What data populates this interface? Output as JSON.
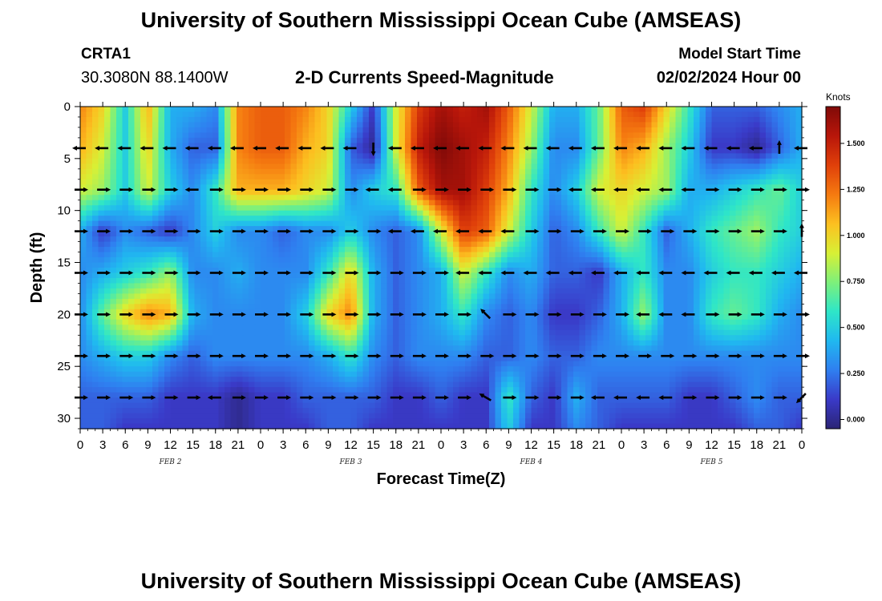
{
  "header": {
    "title": "University of Southern Mississippi Ocean Cube (AMSEAS)",
    "station_id": "CRTA1",
    "coordinates": "30.3080N  88.1400W",
    "chart_title": "2-D Currents Speed-Magnitude",
    "model_start_label": "Model Start Time",
    "model_start_value": "02/02/2024 Hour 00"
  },
  "footer": {
    "title": "University of Southern Mississippi Ocean Cube (AMSEAS)"
  },
  "colors": {
    "palette": [
      "#2b2475",
      "#3a3ac8",
      "#2f7ff0",
      "#20b8f0",
      "#2ee6c8",
      "#7ef07a",
      "#d8f035",
      "#fcc020",
      "#f57a10",
      "#e0400a",
      "#b8160a",
      "#800a08"
    ]
  },
  "chart_data": {
    "type": "heatmap",
    "title": "2-D Currents Speed-Magnitude",
    "xlabel": "Forecast Time(Z)",
    "ylabel": "Depth (ft)",
    "x_tick_labels": [
      "0",
      "3",
      "6",
      "9",
      "12",
      "15",
      "18",
      "21",
      "0",
      "3",
      "6",
      "9",
      "12",
      "15",
      "18",
      "21",
      "0",
      "3",
      "6",
      "9",
      "12",
      "15",
      "18",
      "21",
      "0",
      "3",
      "6",
      "9",
      "12",
      "15",
      "18",
      "21",
      "0"
    ],
    "x_range_hours": [
      0,
      96
    ],
    "date_labels": [
      {
        "label": "FEB 2",
        "hour": 12
      },
      {
        "label": "FEB 3",
        "hour": 36
      },
      {
        "label": "FEB 4",
        "hour": 60
      },
      {
        "label": "FEB 5",
        "hour": 84
      }
    ],
    "y_tick_values": [
      0,
      5,
      10,
      15,
      20,
      25,
      30
    ],
    "y_range_ft": [
      0,
      31
    ],
    "colorbar": {
      "label": "Knots",
      "tick_values": [
        0.0,
        0.25,
        0.5,
        0.75,
        1.0,
        1.25,
        1.5
      ],
      "tick_labels": [
        "0.000",
        "0.250",
        "0.500",
        "0.750",
        "1.000",
        "1.250",
        "1.500"
      ],
      "range": [
        -0.05,
        1.7
      ]
    },
    "speed_grid": {
      "hours": [
        0,
        3,
        6,
        9,
        12,
        15,
        18,
        21,
        24,
        27,
        30,
        33,
        36,
        39,
        42,
        45,
        48,
        51,
        54,
        57,
        60,
        63,
        66,
        69,
        72,
        75,
        78,
        81,
        84,
        87,
        90,
        93,
        96
      ],
      "depths_ft": [
        0,
        4,
        8,
        12,
        16,
        20,
        24,
        28,
        31
      ],
      "knots": [
        [
          1.2,
          1.0,
          0.5,
          1.1,
          0.4,
          0.4,
          0.3,
          1.2,
          1.3,
          1.3,
          1.2,
          1.0,
          0.5,
          0.1,
          0.9,
          1.4,
          1.6,
          1.5,
          1.6,
          1.3,
          0.9,
          0.4,
          0.4,
          0.7,
          1.3,
          1.4,
          1.0,
          0.6,
          0.2,
          0.2,
          0.2,
          0.3,
          0.4
        ],
        [
          1.1,
          0.9,
          0.5,
          1.0,
          0.4,
          0.2,
          0.2,
          1.2,
          1.3,
          1.3,
          1.1,
          1.0,
          0.2,
          0.0,
          0.9,
          1.5,
          1.7,
          1.6,
          1.5,
          1.2,
          0.8,
          0.3,
          0.3,
          0.7,
          1.2,
          1.1,
          0.8,
          0.5,
          0.1,
          0.1,
          0.0,
          0.2,
          0.4
        ],
        [
          0.9,
          0.8,
          0.5,
          0.9,
          0.5,
          0.3,
          0.6,
          1.1,
          1.1,
          1.1,
          1.0,
          0.9,
          0.3,
          0.5,
          0.6,
          1.3,
          1.6,
          1.6,
          1.4,
          1.1,
          0.6,
          0.3,
          0.5,
          0.9,
          1.0,
          0.9,
          0.8,
          0.4,
          0.4,
          0.5,
          0.6,
          0.7,
          0.5
        ],
        [
          0.4,
          0.1,
          0.3,
          0.2,
          0.1,
          0.3,
          0.5,
          0.3,
          0.3,
          0.2,
          0.3,
          0.3,
          0.5,
          0.3,
          0.2,
          0.3,
          0.9,
          1.4,
          1.3,
          0.9,
          0.5,
          0.2,
          0.3,
          0.6,
          0.9,
          0.6,
          0.2,
          0.4,
          0.6,
          0.7,
          0.8,
          0.6,
          0.5
        ],
        [
          0.3,
          0.4,
          0.5,
          0.6,
          0.8,
          0.3,
          0.3,
          0.4,
          0.3,
          0.3,
          0.3,
          0.6,
          1.0,
          0.4,
          0.2,
          0.3,
          0.4,
          0.9,
          0.6,
          0.3,
          0.4,
          0.2,
          0.2,
          0.1,
          0.4,
          0.6,
          0.3,
          0.3,
          0.5,
          0.6,
          0.6,
          0.5,
          0.4
        ],
        [
          0.3,
          0.7,
          1.0,
          1.2,
          1.1,
          0.4,
          0.3,
          0.3,
          0.3,
          0.3,
          0.5,
          1.0,
          1.2,
          0.4,
          0.2,
          0.3,
          0.4,
          0.6,
          0.3,
          0.2,
          0.3,
          0.1,
          0.1,
          0.2,
          0.4,
          0.8,
          0.3,
          0.3,
          0.6,
          0.7,
          0.6,
          0.4,
          0.3
        ],
        [
          0.3,
          0.4,
          0.5,
          0.5,
          0.3,
          0.2,
          0.3,
          0.3,
          0.3,
          0.3,
          0.3,
          0.4,
          0.6,
          0.3,
          0.2,
          0.3,
          0.3,
          0.3,
          0.2,
          0.2,
          0.3,
          0.2,
          0.2,
          0.3,
          0.3,
          0.3,
          0.3,
          0.3,
          0.3,
          0.3,
          0.3,
          0.3,
          0.3
        ],
        [
          0.2,
          0.2,
          0.2,
          0.2,
          0.1,
          0.1,
          0.1,
          0.0,
          0.1,
          0.1,
          0.2,
          0.2,
          0.2,
          0.2,
          0.1,
          0.1,
          0.2,
          0.1,
          0.1,
          0.6,
          0.2,
          0.1,
          0.4,
          0.2,
          0.2,
          0.2,
          0.2,
          0.1,
          0.1,
          0.2,
          0.3,
          0.2,
          0.2
        ],
        [
          0.2,
          0.2,
          0.1,
          0.1,
          0.1,
          0.1,
          0.1,
          0.0,
          0.1,
          0.1,
          0.1,
          0.2,
          0.2,
          0.1,
          0.1,
          0.1,
          0.1,
          0.1,
          0.1,
          0.5,
          0.1,
          0.1,
          0.3,
          0.2,
          0.1,
          0.1,
          0.1,
          0.1,
          0.1,
          0.1,
          0.2,
          0.2,
          0.1
        ]
      ]
    },
    "vectors": {
      "depths_ft": [
        4,
        8,
        12,
        16,
        20,
        24,
        28
      ],
      "hours": [
        0,
        3,
        6,
        9,
        12,
        15,
        18,
        21,
        24,
        27,
        30,
        33,
        36,
        39,
        42,
        45,
        48,
        51,
        54,
        57,
        60,
        63,
        66,
        69,
        72,
        75,
        78,
        81,
        84,
        87,
        90,
        93,
        96
      ],
      "direction_deg": [
        [
          180,
          180,
          180,
          180,
          180,
          180,
          180,
          180,
          180,
          180,
          180,
          180,
          180,
          270,
          180,
          180,
          180,
          180,
          180,
          180,
          180,
          180,
          180,
          180,
          180,
          180,
          180,
          180,
          180,
          180,
          180,
          90,
          180
        ],
        [
          0,
          0,
          0,
          0,
          0,
          180,
          0,
          0,
          0,
          0,
          0,
          0,
          0,
          180,
          180,
          0,
          0,
          0,
          0,
          0,
          0,
          0,
          180,
          180,
          180,
          180,
          180,
          180,
          0,
          0,
          0,
          0,
          0
        ],
        [
          0,
          0,
          0,
          0,
          0,
          0,
          0,
          0,
          0,
          0,
          0,
          0,
          0,
          0,
          180,
          180,
          180,
          180,
          180,
          180,
          0,
          0,
          0,
          0,
          0,
          0,
          0,
          0,
          0,
          0,
          0,
          0,
          90
        ],
        [
          0,
          0,
          0,
          0,
          0,
          0,
          0,
          0,
          0,
          0,
          0,
          0,
          0,
          0,
          0,
          0,
          0,
          180,
          180,
          180,
          180,
          180,
          180,
          180,
          180,
          180,
          180,
          180,
          180,
          180,
          180,
          180,
          180
        ],
        [
          0,
          0,
          0,
          0,
          0,
          0,
          0,
          0,
          0,
          0,
          0,
          0,
          0,
          0,
          0,
          0,
          0,
          0,
          135,
          0,
          0,
          0,
          0,
          0,
          0,
          180,
          180,
          180,
          0,
          0,
          0,
          0,
          0
        ],
        [
          0,
          0,
          0,
          0,
          0,
          0,
          0,
          0,
          0,
          0,
          0,
          0,
          0,
          0,
          0,
          0,
          0,
          0,
          0,
          0,
          0,
          0,
          0,
          0,
          0,
          0,
          0,
          0,
          0,
          0,
          0,
          0,
          0
        ],
        [
          0,
          0,
          0,
          0,
          0,
          0,
          180,
          0,
          0,
          0,
          0,
          0,
          0,
          0,
          0,
          0,
          0,
          0,
          150,
          0,
          0,
          0,
          0,
          180,
          180,
          180,
          180,
          0,
          0,
          0,
          0,
          0,
          225
        ]
      ]
    }
  }
}
